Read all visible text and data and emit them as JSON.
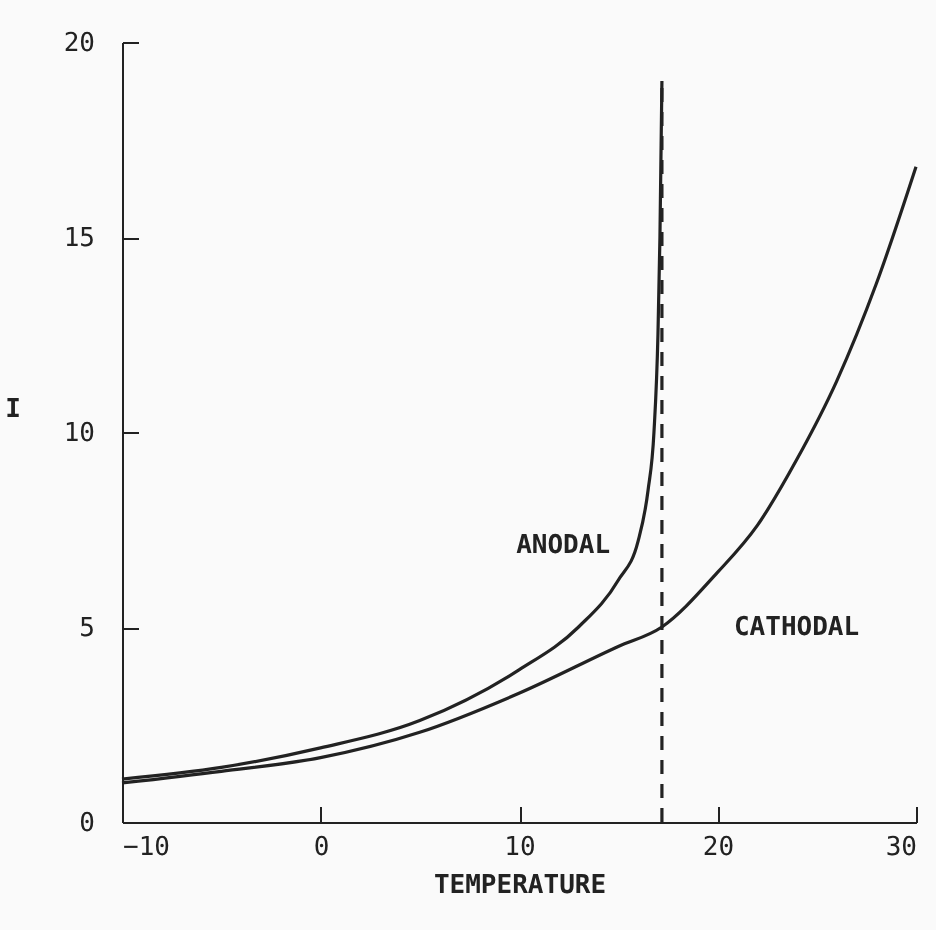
{
  "chart_data": {
    "type": "line",
    "xlabel": "TEMPERATURE",
    "ylabel": "I",
    "xlim": [
      -10,
      30
    ],
    "xticks": [
      -10,
      0,
      10,
      20,
      30
    ],
    "ylim": [
      0,
      20
    ],
    "yticks": [
      0,
      5,
      10,
      15,
      20
    ],
    "grid": false,
    "marker": "none",
    "series": [
      {
        "name": "ANODAL",
        "color": "#222222",
        "line_style": "solid",
        "x": [
          -10,
          -5,
          0,
          5,
          10,
          13,
          15,
          16,
          16.5,
          16.8,
          17,
          17.1,
          17.2
        ],
        "values": [
          1.1,
          1.4,
          1.9,
          2.6,
          3.9,
          5.0,
          6.2,
          7.2,
          8.5,
          10,
          12.5,
          15,
          19
        ]
      },
      {
        "name": "CATHODAL",
        "color": "#222222",
        "line_style": "solid",
        "x": [
          -10,
          -5,
          0,
          5,
          10,
          15,
          17.2,
          20,
          22,
          24,
          26,
          28,
          30
        ],
        "values": [
          1.0,
          1.3,
          1.65,
          2.3,
          3.3,
          4.5,
          5.0,
          6.4,
          7.6,
          9.3,
          11.3,
          13.8,
          16.8
        ]
      },
      {
        "color": "#222222",
        "line_style": "dashed",
        "x": [
          17.2,
          17.2
        ],
        "values": [
          0,
          19
        ]
      }
    ]
  }
}
